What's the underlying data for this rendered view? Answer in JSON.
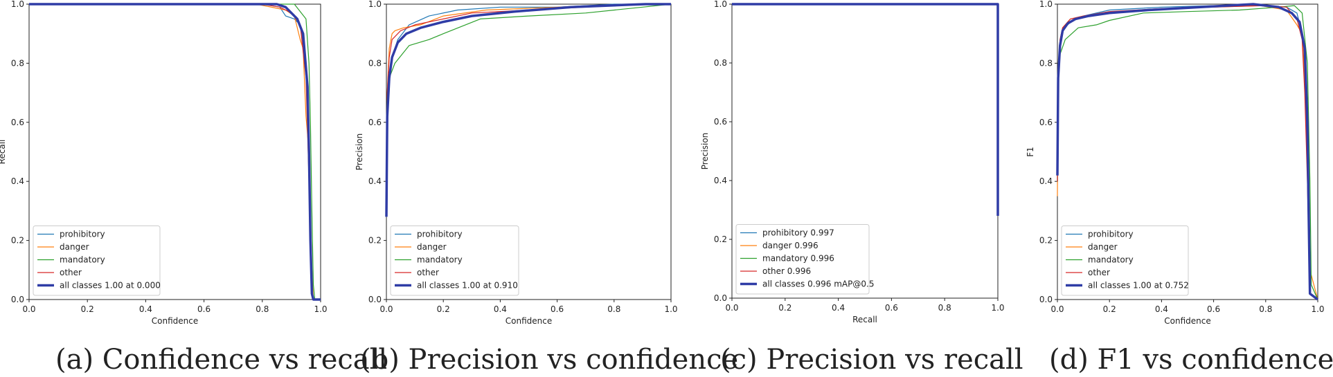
{
  "colors": {
    "prohibitory": "#1f77b4",
    "danger": "#ff7f0e",
    "mandatory": "#2ca02c",
    "other": "#d62728",
    "all": "#2f3ca6"
  },
  "chart_data": [
    {
      "type": "line",
      "id": "a",
      "caption": "(a) Confidence vs recall",
      "xlabel": "Confidence",
      "ylabel": "Recall",
      "xlim": [
        0,
        1
      ],
      "ylim": [
        0,
        1
      ],
      "xticks": [
        "0.0",
        "0.2",
        "0.4",
        "0.6",
        "0.8",
        "1.0"
      ],
      "yticks": [
        "0.0",
        "0.2",
        "0.4",
        "0.6",
        "0.8",
        "1.0"
      ],
      "legend_position": "lower-left",
      "series": [
        {
          "name": "prohibitory",
          "color_key": "prohibitory",
          "x": [
            0,
            0.8,
            0.86,
            0.88,
            0.91,
            0.93,
            0.95,
            0.96,
            0.965,
            0.97,
            0.975,
            1.0
          ],
          "y": [
            1,
            1,
            0.99,
            0.96,
            0.95,
            0.93,
            0.8,
            0.6,
            0.3,
            0.05,
            0,
            0
          ]
        },
        {
          "name": "danger",
          "color_key": "danger",
          "x": [
            0,
            0.78,
            0.88,
            0.91,
            0.93,
            0.94,
            0.95,
            0.96,
            0.97,
            0.975,
            1.0
          ],
          "y": [
            1,
            1,
            0.98,
            0.96,
            0.88,
            0.85,
            0.62,
            0.5,
            0.1,
            0,
            0
          ]
        },
        {
          "name": "mandatory",
          "color_key": "mandatory",
          "x": [
            0,
            0.91,
            0.95,
            0.96,
            0.965,
            0.97,
            0.975,
            0.98,
            1.0
          ],
          "y": [
            1,
            1,
            0.95,
            0.8,
            0.6,
            0.3,
            0.05,
            0,
            0
          ]
        },
        {
          "name": "other",
          "color_key": "other",
          "x": [
            0,
            0.8,
            0.86,
            0.9,
            0.93,
            0.95,
            0.96,
            0.97,
            0.975,
            1.0
          ],
          "y": [
            1,
            1,
            0.99,
            0.97,
            0.93,
            0.75,
            0.4,
            0.05,
            0,
            0
          ]
        },
        {
          "name": "all classes 1.00 at 0.000",
          "color_key": "all",
          "bold": true,
          "x": [
            0,
            0.85,
            0.88,
            0.9,
            0.92,
            0.94,
            0.955,
            0.96,
            0.965,
            0.97,
            0.975,
            1.0
          ],
          "y": [
            1,
            1,
            0.99,
            0.97,
            0.95,
            0.9,
            0.72,
            0.5,
            0.2,
            0.02,
            0,
            0
          ]
        }
      ]
    },
    {
      "type": "line",
      "id": "b",
      "caption": "(b) Precision vs confidence",
      "xlabel": "Confidence",
      "ylabel": "Precision",
      "xlim": [
        0,
        1
      ],
      "ylim": [
        0,
        1
      ],
      "xticks": [
        "0.0",
        "0.2",
        "0.4",
        "0.6",
        "0.8",
        "1.0"
      ],
      "yticks": [
        "0.0",
        "0.2",
        "0.4",
        "0.6",
        "0.8",
        "1.0"
      ],
      "legend_position": "lower-left",
      "series": [
        {
          "name": "prohibitory",
          "color_key": "prohibitory",
          "x": [
            0,
            0.003,
            0.01,
            0.02,
            0.04,
            0.08,
            0.15,
            0.25,
            0.4,
            0.6,
            0.8,
            0.9,
            1.0
          ],
          "y": [
            0.3,
            0.6,
            0.75,
            0.82,
            0.88,
            0.93,
            0.96,
            0.98,
            0.99,
            0.99,
            1.0,
            1.0,
            1.0
          ]
        },
        {
          "name": "danger",
          "color_key": "danger",
          "x": [
            0,
            0.003,
            0.01,
            0.02,
            0.03,
            0.06,
            0.12,
            0.2,
            0.35,
            0.6,
            0.9,
            1.0
          ],
          "y": [
            0.3,
            0.7,
            0.85,
            0.9,
            0.91,
            0.92,
            0.93,
            0.96,
            0.98,
            0.99,
            1.0,
            1.0
          ]
        },
        {
          "name": "mandatory",
          "color_key": "mandatory",
          "x": [
            0,
            0.003,
            0.01,
            0.03,
            0.08,
            0.15,
            0.2,
            0.33,
            0.5,
            0.7,
            0.9,
            1.0
          ],
          "y": [
            0.3,
            0.6,
            0.75,
            0.8,
            0.86,
            0.88,
            0.9,
            0.95,
            0.96,
            0.97,
            0.99,
            1.0
          ]
        },
        {
          "name": "other",
          "color_key": "other",
          "x": [
            0,
            0.003,
            0.01,
            0.02,
            0.05,
            0.1,
            0.2,
            0.3,
            0.5,
            0.7,
            0.9,
            1.0
          ],
          "y": [
            0.3,
            0.7,
            0.82,
            0.88,
            0.91,
            0.93,
            0.95,
            0.97,
            0.98,
            0.99,
            1.0,
            1.0
          ]
        },
        {
          "name": "all classes 1.00 at 0.910",
          "color_key": "all",
          "bold": true,
          "x": [
            0,
            0.003,
            0.01,
            0.02,
            0.04,
            0.07,
            0.12,
            0.2,
            0.3,
            0.45,
            0.65,
            0.85,
            0.91,
            1.0
          ],
          "y": [
            0.28,
            0.62,
            0.75,
            0.82,
            0.87,
            0.9,
            0.92,
            0.94,
            0.96,
            0.975,
            0.99,
            0.998,
            1.0,
            1.0
          ]
        }
      ]
    },
    {
      "type": "line",
      "id": "c",
      "caption": "(c) Precision vs recall",
      "xlabel": "Recall",
      "ylabel": "Precision",
      "xlim": [
        0,
        1
      ],
      "ylim": [
        0,
        1
      ],
      "xticks": [
        "0.0",
        "0.2",
        "0.4",
        "0.6",
        "0.8",
        "1.0"
      ],
      "yticks": [
        "0.0",
        "0.2",
        "0.4",
        "0.6",
        "0.8",
        "1.0"
      ],
      "legend_position": "lower-left",
      "series": [
        {
          "name": "prohibitory 0.997",
          "color_key": "prohibitory",
          "x": [
            0,
            0.99,
            1.0,
            1.0
          ],
          "y": [
            1,
            1,
            1,
            0.28
          ]
        },
        {
          "name": "danger 0.996",
          "color_key": "danger",
          "x": [
            0,
            0.99,
            1.0,
            1.0
          ],
          "y": [
            1,
            1,
            1,
            0.28
          ]
        },
        {
          "name": "mandatory 0.996",
          "color_key": "mandatory",
          "x": [
            0,
            0.99,
            1.0,
            1.0
          ],
          "y": [
            1,
            1,
            1,
            0.28
          ]
        },
        {
          "name": "other 0.996",
          "color_key": "other",
          "x": [
            0,
            0.99,
            1.0,
            1.0
          ],
          "y": [
            1,
            1,
            1,
            0.28
          ]
        },
        {
          "name": "all classes 0.996 mAP@0.5",
          "color_key": "all",
          "bold": true,
          "x": [
            0,
            0.99,
            1.0,
            1.0
          ],
          "y": [
            1,
            1,
            1,
            0.28
          ]
        }
      ]
    },
    {
      "type": "line",
      "id": "d",
      "caption": "(d) F1 vs confidence",
      "xlabel": "Confidence",
      "ylabel": "F1",
      "xlim": [
        0,
        1
      ],
      "ylim": [
        0,
        1
      ],
      "xticks": [
        "0.0",
        "0.2",
        "0.4",
        "0.6",
        "0.8",
        "1.0"
      ],
      "yticks": [
        "0.0",
        "0.2",
        "0.4",
        "0.6",
        "0.8",
        "1.0"
      ],
      "legend_position": "lower-left",
      "series": [
        {
          "name": "prohibitory",
          "color_key": "prohibitory",
          "x": [
            0,
            0.003,
            0.01,
            0.02,
            0.05,
            0.1,
            0.2,
            0.4,
            0.6,
            0.8,
            0.88,
            0.92,
            0.94,
            0.95,
            0.96,
            0.965,
            0.97,
            1.0
          ],
          "y": [
            0.4,
            0.75,
            0.86,
            0.91,
            0.94,
            0.96,
            0.98,
            0.99,
            0.995,
            0.995,
            0.99,
            0.97,
            0.9,
            0.75,
            0.45,
            0.2,
            0.02,
            0
          ]
        },
        {
          "name": "danger",
          "color_key": "danger",
          "x": [
            0,
            0.003,
            0.01,
            0.02,
            0.05,
            0.1,
            0.2,
            0.4,
            0.6,
            0.78,
            0.88,
            0.92,
            0.94,
            0.95,
            0.96,
            0.97,
            1.0
          ],
          "y": [
            0.35,
            0.78,
            0.88,
            0.92,
            0.95,
            0.96,
            0.97,
            0.985,
            0.99,
            0.995,
            0.98,
            0.93,
            0.9,
            0.75,
            0.6,
            0.1,
            0
          ]
        },
        {
          "name": "mandatory",
          "color_key": "mandatory",
          "x": [
            0,
            0.003,
            0.01,
            0.03,
            0.08,
            0.15,
            0.2,
            0.33,
            0.5,
            0.7,
            0.85,
            0.91,
            0.94,
            0.96,
            0.97,
            0.975,
            1.0
          ],
          "y": [
            0.4,
            0.72,
            0.83,
            0.88,
            0.92,
            0.93,
            0.945,
            0.97,
            0.975,
            0.98,
            0.99,
            0.995,
            0.97,
            0.8,
            0.4,
            0.05,
            0
          ]
        },
        {
          "name": "other",
          "color_key": "other",
          "x": [
            0,
            0.003,
            0.01,
            0.02,
            0.05,
            0.1,
            0.2,
            0.4,
            0.6,
            0.8,
            0.88,
            0.92,
            0.94,
            0.95,
            0.96,
            0.97,
            1.0
          ],
          "y": [
            0.4,
            0.78,
            0.88,
            0.92,
            0.95,
            0.96,
            0.975,
            0.985,
            0.99,
            0.995,
            0.99,
            0.95,
            0.88,
            0.7,
            0.4,
            0.02,
            0
          ]
        },
        {
          "name": "all classes 1.00 at 0.752",
          "color_key": "all",
          "bold": true,
          "x": [
            0,
            0.003,
            0.01,
            0.02,
            0.04,
            0.07,
            0.12,
            0.2,
            0.35,
            0.55,
            0.752,
            0.85,
            0.9,
            0.93,
            0.95,
            0.96,
            0.965,
            0.97,
            1.0
          ],
          "y": [
            0.42,
            0.75,
            0.86,
            0.91,
            0.935,
            0.95,
            0.96,
            0.97,
            0.98,
            0.99,
            1.0,
            0.99,
            0.97,
            0.94,
            0.85,
            0.6,
            0.3,
            0.02,
            0
          ]
        }
      ]
    }
  ]
}
